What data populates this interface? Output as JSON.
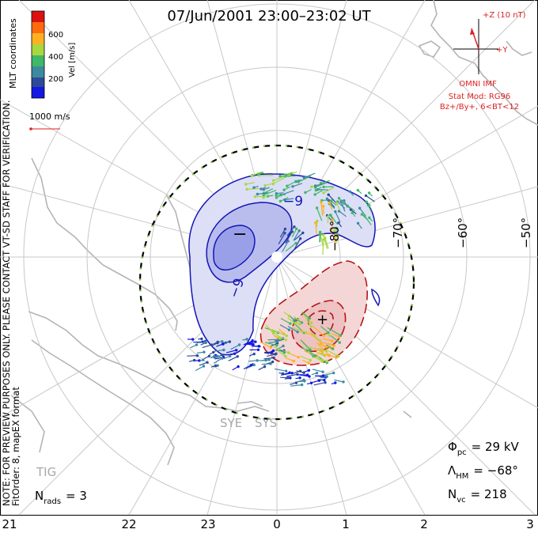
{
  "title": "07/Jun/2001 23:00–23:02 UT",
  "colorbar": {
    "ticks": [
      "600",
      "400",
      "200"
    ],
    "label": "Vel [m/s]",
    "colors": [
      "#dd1010",
      "#ff6a10",
      "#ffb020",
      "#a7d840",
      "#3fb868",
      "#3d8aa0",
      "#2d4a9a",
      "#1418e0"
    ]
  },
  "coord_label": "MLT coordinates",
  "scale_vector": "1000 m/s",
  "disclaimer": "NOTE: FOR PREVIEW PURPOSES ONLY. PLEASE CONTACT VT-SD STAFF FOR VERIFICATION.",
  "fit_info": "FitOrder: 8, mapEX format",
  "imf": {
    "z_label": "+Z (10 nT)",
    "y_label": "+Y",
    "omni_label": "OMNI IMF",
    "stat_mod": "Stat Mod: RG96",
    "stat_mod_cond": "Bz+/By+, 6<BT<12"
  },
  "lat_labels": [
    "−80°",
    "−70°",
    "−60°",
    "−50°"
  ],
  "contour_labels": {
    "neg": "−9",
    "neg2": "−9",
    "min": "−",
    "max": "+"
  },
  "mlt_labels": [
    "21",
    "22",
    "23",
    "0",
    "1",
    "2",
    "3"
  ],
  "stations": {
    "sye": "SYE",
    "sys": "SYS",
    "tig": "TIG"
  },
  "stats": {
    "pcp_sym": "Φ",
    "pcp_sub": "pc",
    "pcp_val": "= 29 kV",
    "hm_sym": "Λ",
    "hm_sub": "HM",
    "hm_val": "= −68°",
    "nvc_sym": "N",
    "nvc_sub": "vc",
    "nvc_val": "= 218",
    "nrads_sym": "N",
    "nrads_sub": "rads",
    "nrads_val": "= 3"
  }
}
